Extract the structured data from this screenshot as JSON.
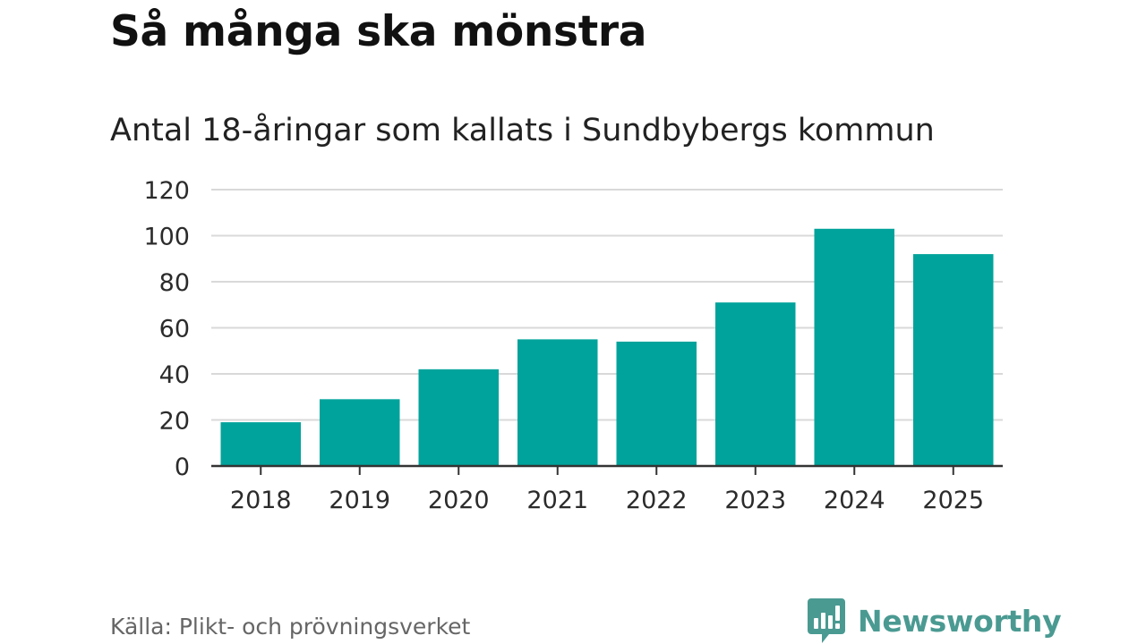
{
  "chart_data": {
    "type": "bar",
    "title": "Så många ska mönstra",
    "subtitle": "Antal 18-åringar som kallats i Sundbybergs kommun",
    "categories": [
      "2018",
      "2019",
      "2020",
      "2021",
      "2022",
      "2023",
      "2024",
      "2025"
    ],
    "values": [
      19,
      29,
      42,
      55,
      54,
      71,
      103,
      92
    ],
    "xlabel": "",
    "ylabel": "",
    "ylim": [
      0,
      120
    ],
    "yticks": [
      "0",
      "20",
      "40",
      "60",
      "80",
      "100",
      "120"
    ],
    "grid": true,
    "legend": "none"
  },
  "colors": {
    "bar": "#00a39b",
    "grid": "#d9d9d9",
    "axis": "#333333",
    "brand": "#4a9a92"
  },
  "footer": {
    "source": "Källa: Plikt- och prövningsverket",
    "brand_name": "Newsworthy",
    "brand_icon": "newsworthy-logo-icon"
  }
}
